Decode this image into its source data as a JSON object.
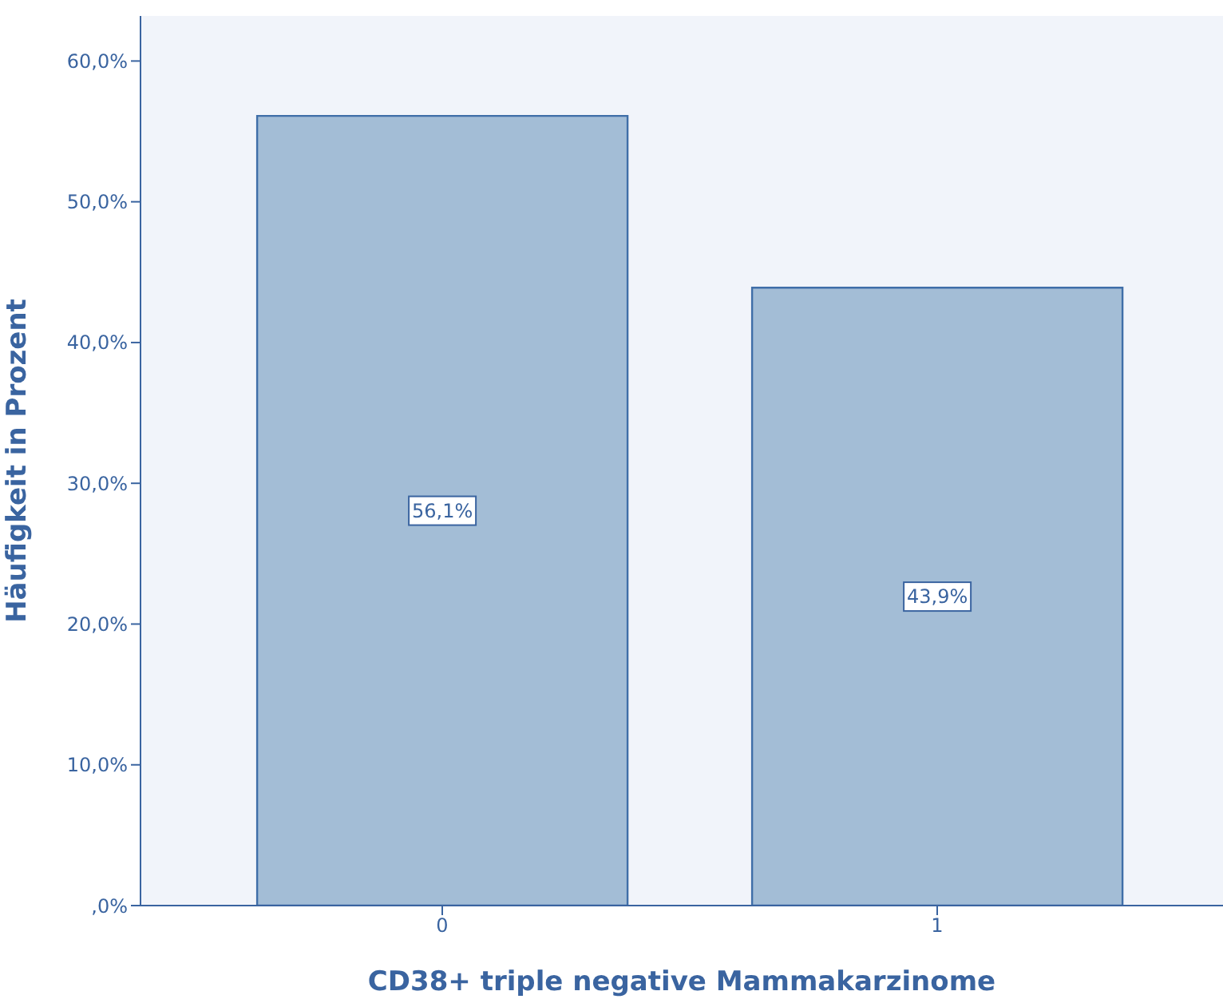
{
  "chart_data": {
    "type": "bar",
    "xlabel": "CD38+ triple negative Mammakarzinome",
    "ylabel": "Häufigkeit in Prozent",
    "categories": [
      "0",
      "1"
    ],
    "values": [
      56.1,
      43.9
    ],
    "value_labels": [
      "56,1%",
      "43,9%"
    ],
    "color": "#a3bdd6",
    "ylim": [
      0,
      63.2
    ],
    "yticks": [
      {
        "value": 0,
        "label": ",0%"
      },
      {
        "value": 10,
        "label": "10,0%"
      },
      {
        "value": 20,
        "label": "20,0%"
      },
      {
        "value": 30,
        "label": "30,0%"
      },
      {
        "value": 40,
        "label": "40,0%"
      },
      {
        "value": 50,
        "label": "50,0%"
      },
      {
        "value": 60,
        "label": "60,0%"
      }
    ],
    "grid": false,
    "legend": false
  }
}
